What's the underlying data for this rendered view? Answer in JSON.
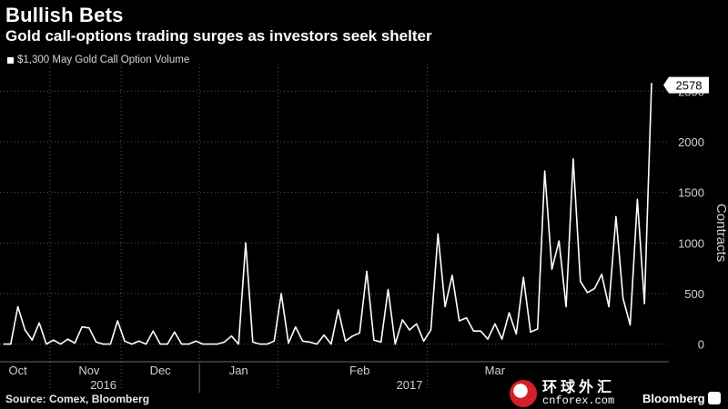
{
  "title": "Bullish Bets",
  "subtitle": "Gold call-options trading surges as investors seek shelter",
  "legend_label": "$1,300 May Gold Call Option Volume",
  "source": "Source: Comex, Bloomberg",
  "watermark": {
    "cn": "环球外汇",
    "en": "cnforex.com"
  },
  "brand": "Bloomberg",
  "chart_data": {
    "type": "line",
    "title": "Bullish Bets",
    "subtitle": "Gold call-options trading surges as investors seek shelter",
    "ylabel": "Contracts",
    "ylim": [
      -120,
      2700
    ],
    "yticks": [
      0,
      500,
      1000,
      1500,
      2000,
      2500
    ],
    "ytick_labels": [
      "0",
      "500",
      "1000",
      "1500",
      "2000",
      "2500"
    ],
    "grid": true,
    "legend_placement": "top-left",
    "last_value_label": "2578",
    "month_labels": [
      {
        "label": "Oct",
        "index": 2
      },
      {
        "label": "Nov",
        "index": 12
      },
      {
        "label": "Dec",
        "index": 22
      },
      {
        "label": "Jan",
        "index": 33
      },
      {
        "label": "Feb",
        "index": 50
      },
      {
        "label": "Mar",
        "index": 69
      }
    ],
    "month_boundaries": [
      6.5,
      16.5,
      27.5,
      38.5,
      59.5
    ],
    "year_labels": [
      {
        "label": "2016",
        "index": 14
      },
      {
        "label": "2017",
        "index": 57
      }
    ],
    "year_boundary": 27.5,
    "series": [
      {
        "color": "#ffffff",
        "values": [
          0,
          0,
          370,
          140,
          40,
          210,
          0,
          40,
          0,
          50,
          10,
          170,
          160,
          20,
          0,
          0,
          230,
          30,
          0,
          30,
          0,
          130,
          0,
          0,
          120,
          0,
          0,
          30,
          0,
          0,
          0,
          20,
          80,
          0,
          1000,
          20,
          0,
          0,
          30,
          500,
          10,
          170,
          30,
          20,
          0,
          90,
          0,
          340,
          30,
          80,
          110,
          720,
          40,
          20,
          540,
          0,
          240,
          140,
          200,
          30,
          140,
          1090,
          370,
          680,
          230,
          260,
          130,
          130,
          50,
          200,
          50,
          310,
          100,
          660,
          120,
          150,
          1710,
          740,
          1020,
          370,
          1830,
          620,
          510,
          550,
          690,
          370,
          1260,
          450,
          190,
          1430,
          400,
          2578
        ]
      }
    ]
  }
}
